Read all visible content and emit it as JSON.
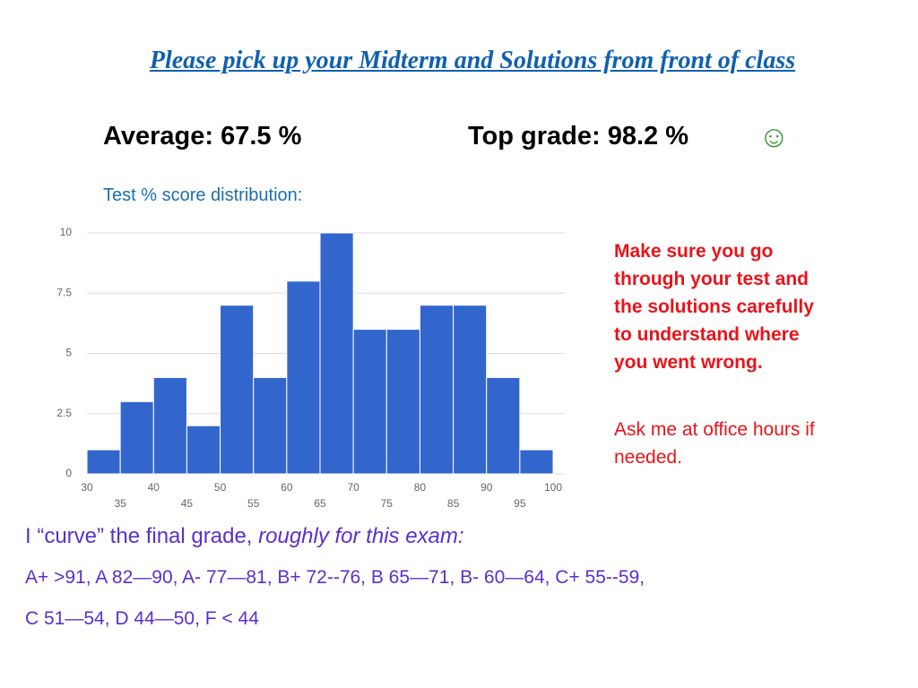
{
  "title": "Please pick up your Midterm and Solutions from front of class",
  "stats": {
    "average": "Average: 67.5 %",
    "top": "Top grade: 98.2 %",
    "smiley": "☺"
  },
  "chart_data": {
    "type": "histogram",
    "title": "Test % score distribution:",
    "bins": [
      30,
      35,
      40,
      45,
      50,
      55,
      60,
      65,
      70,
      75,
      80,
      85,
      90,
      95,
      100
    ],
    "values": [
      1,
      3,
      4,
      2,
      7,
      4,
      8,
      10,
      6,
      6,
      7,
      7,
      4,
      1
    ],
    "color": "#3366cc",
    "xlim": [
      30,
      100
    ],
    "xticks": [
      30,
      35,
      40,
      45,
      50,
      55,
      60,
      65,
      70,
      75,
      80,
      85,
      90,
      95,
      100
    ],
    "ylim": [
      0,
      10
    ],
    "yticks": [
      0,
      2.5,
      5,
      7.5,
      10
    ],
    "grid": true
  },
  "note": {
    "warning": "Make sure you go through your test and the solutions carefully to understand where you went wrong.",
    "ask": "Ask me at office hours if needed."
  },
  "curve": {
    "intro": "I “curve” the final grade,",
    "intro_italic": "roughly for this exam:",
    "lines": [
      "A+ >91, A 82—90, A- 77—81, B+ 72--76, B 65—71, B- 60—64, C+ 55--59,",
      "C 51—54, D 44—50, F < 44"
    ]
  }
}
